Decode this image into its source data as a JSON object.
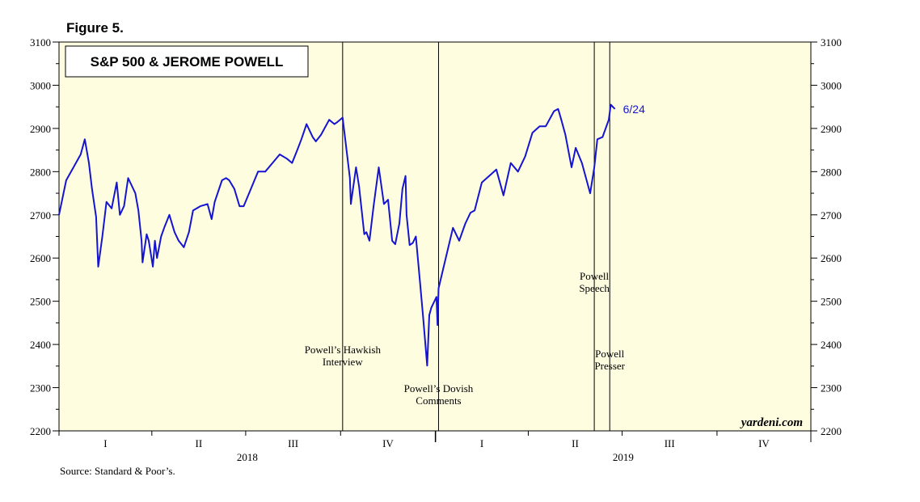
{
  "figure_label": "Figure 5.",
  "source": "Source: Standard & Poor’s.",
  "brand": "yardeni.com",
  "colors": {
    "plot_bg": "#fffde0",
    "series": "#1414d2",
    "axis": "#000000"
  },
  "chart_data": {
    "type": "line",
    "title": "S&P 500 & JEROME POWELL",
    "ylim": [
      2200,
      3100
    ],
    "yticks": [
      2200,
      2300,
      2400,
      2500,
      2600,
      2700,
      2800,
      2900,
      3000,
      3100
    ],
    "xlim": [
      "2018-01-01",
      "2019-12-31"
    ],
    "quarters": [
      {
        "label": "I",
        "start": "2018-01-01"
      },
      {
        "label": "II",
        "start": "2018-04-01"
      },
      {
        "label": "III",
        "start": "2018-07-01"
      },
      {
        "label": "IV",
        "start": "2018-10-01"
      },
      {
        "label": "I",
        "start": "2019-01-01"
      },
      {
        "label": "II",
        "start": "2019-04-01"
      },
      {
        "label": "III",
        "start": "2019-07-01"
      },
      {
        "label": "IV",
        "start": "2019-10-01"
      }
    ],
    "years": [
      {
        "label": "2018",
        "start": "2018-01-01"
      },
      {
        "label": "2019",
        "start": "2019-01-01"
      }
    ],
    "series": [
      {
        "x": [
          "2018-01-01",
          "2018-01-08",
          "2018-01-15",
          "2018-01-22",
          "2018-01-26",
          "2018-01-30",
          "2018-02-02",
          "2018-02-06",
          "2018-02-08",
          "2018-02-12",
          "2018-02-16",
          "2018-02-21",
          "2018-02-26",
          "2018-03-01",
          "2018-03-05",
          "2018-03-09",
          "2018-03-13",
          "2018-03-16",
          "2018-03-19",
          "2018-03-22",
          "2018-03-23",
          "2018-03-27",
          "2018-03-29",
          "2018-04-02",
          "2018-04-04",
          "2018-04-06",
          "2018-04-10",
          "2018-04-13",
          "2018-04-18",
          "2018-04-23",
          "2018-04-27",
          "2018-05-02",
          "2018-05-07",
          "2018-05-11",
          "2018-05-18",
          "2018-05-25",
          "2018-05-29",
          "2018-06-01",
          "2018-06-08",
          "2018-06-12",
          "2018-06-15",
          "2018-06-20",
          "2018-06-25",
          "2018-06-29",
          "2018-07-06",
          "2018-07-13",
          "2018-07-20",
          "2018-07-27",
          "2018-08-03",
          "2018-08-10",
          "2018-08-15",
          "2018-08-20",
          "2018-08-24",
          "2018-08-29",
          "2018-09-04",
          "2018-09-07",
          "2018-09-12",
          "2018-09-20",
          "2018-09-25",
          "2018-09-28",
          "2018-10-03",
          "2018-10-05",
          "2018-10-10",
          "2018-10-11",
          "2018-10-16",
          "2018-10-19",
          "2018-10-24",
          "2018-10-26",
          "2018-10-29",
          "2018-11-02",
          "2018-11-07",
          "2018-11-12",
          "2018-11-16",
          "2018-11-20",
          "2018-11-23",
          "2018-11-27",
          "2018-11-30",
          "2018-12-03",
          "2018-12-04",
          "2018-12-07",
          "2018-12-10",
          "2018-12-13",
          "2018-12-17",
          "2018-12-20",
          "2018-12-24",
          "2018-12-26",
          "2018-12-28",
          "2019-01-02",
          "2019-01-03",
          "2019-01-04",
          "2019-01-10",
          "2019-01-18",
          "2019-01-24",
          "2019-01-30",
          "2019-02-04",
          "2019-02-08",
          "2019-02-15",
          "2019-02-22",
          "2019-03-01",
          "2019-03-08",
          "2019-03-15",
          "2019-03-22",
          "2019-03-29",
          "2019-04-05",
          "2019-04-12",
          "2019-04-18",
          "2019-04-26",
          "2019-04-30",
          "2019-05-03",
          "2019-05-07",
          "2019-05-13",
          "2019-05-17",
          "2019-05-23",
          "2019-05-31",
          "2019-06-04",
          "2019-06-07",
          "2019-06-12",
          "2019-06-18",
          "2019-06-20",
          "2019-06-24"
        ],
        "y": [
          2700,
          2780,
          2810,
          2840,
          2875,
          2820,
          2760,
          2695,
          2580,
          2650,
          2730,
          2715,
          2775,
          2700,
          2720,
          2785,
          2765,
          2750,
          2710,
          2640,
          2590,
          2655,
          2640,
          2580,
          2640,
          2600,
          2650,
          2670,
          2700,
          2660,
          2640,
          2625,
          2660,
          2710,
          2720,
          2725,
          2690,
          2730,
          2780,
          2785,
          2780,
          2760,
          2720,
          2720,
          2760,
          2800,
          2800,
          2820,
          2840,
          2830,
          2820,
          2850,
          2875,
          2910,
          2880,
          2870,
          2885,
          2920,
          2910,
          2915,
          2925,
          2885,
          2785,
          2725,
          2810,
          2765,
          2655,
          2660,
          2640,
          2720,
          2810,
          2725,
          2735,
          2640,
          2632,
          2680,
          2760,
          2790,
          2700,
          2630,
          2635,
          2650,
          2545,
          2465,
          2351,
          2468,
          2485,
          2510,
          2445,
          2530,
          2590,
          2670,
          2640,
          2680,
          2705,
          2710,
          2775,
          2790,
          2805,
          2745,
          2820,
          2800,
          2835,
          2890,
          2905,
          2905,
          2940,
          2945,
          2920,
          2885,
          2810,
          2855,
          2820,
          2750,
          2810,
          2875,
          2880,
          2920,
          2955,
          2945
        ]
      }
    ],
    "last_label": "6/24",
    "events": [
      {
        "date": "2018-10-03",
        "label": [
          "Powell’s Hawkish",
          "Interview"
        ],
        "label_y": 2380
      },
      {
        "date": "2019-01-04",
        "label": [
          "Powell’s Dovish",
          "Comments"
        ],
        "label_y": 2290
      },
      {
        "date": "2019-06-04",
        "label": [
          "Powell",
          "Speech"
        ],
        "label_y": 2550
      },
      {
        "date": "2019-06-19",
        "label": [
          "Powell",
          "Presser"
        ],
        "label_y": 2370
      }
    ]
  }
}
